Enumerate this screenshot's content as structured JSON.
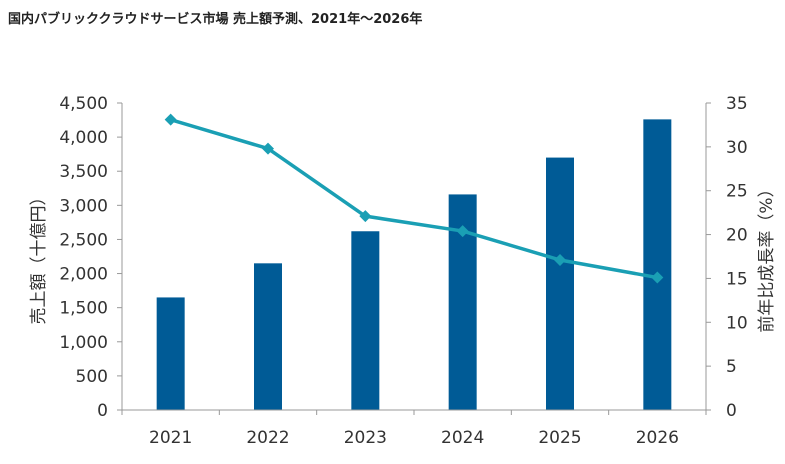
{
  "chart_data": {
    "type": "bar",
    "title": "国内パブリッククラウドサービス市場 売上額予測、2021年～2026年",
    "categories": [
      "2021",
      "2022",
      "2023",
      "2024",
      "2025",
      "2026"
    ],
    "ylabel": "売上額（十億円）",
    "y2label": "前年比成長率（%）",
    "ylim": [
      0,
      4500
    ],
    "y2lim": [
      0,
      35
    ],
    "yticks": [
      "0",
      "500",
      "1,000",
      "1,500",
      "2,000",
      "2,500",
      "3,000",
      "3,500",
      "4,000",
      "4,500"
    ],
    "y2ticks": [
      "0",
      "5",
      "10",
      "15",
      "20",
      "25",
      "30",
      "35"
    ],
    "grid": false,
    "series": [
      {
        "type": "bar",
        "axis": "left",
        "values": [
          1650,
          2150,
          2620,
          3160,
          3700,
          4260
        ],
        "color": "#005b96"
      },
      {
        "type": "line",
        "axis": "right",
        "values": [
          33.1,
          29.8,
          22.1,
          20.4,
          17.1,
          15.1
        ],
        "color": "#1a9fb4"
      }
    ]
  }
}
